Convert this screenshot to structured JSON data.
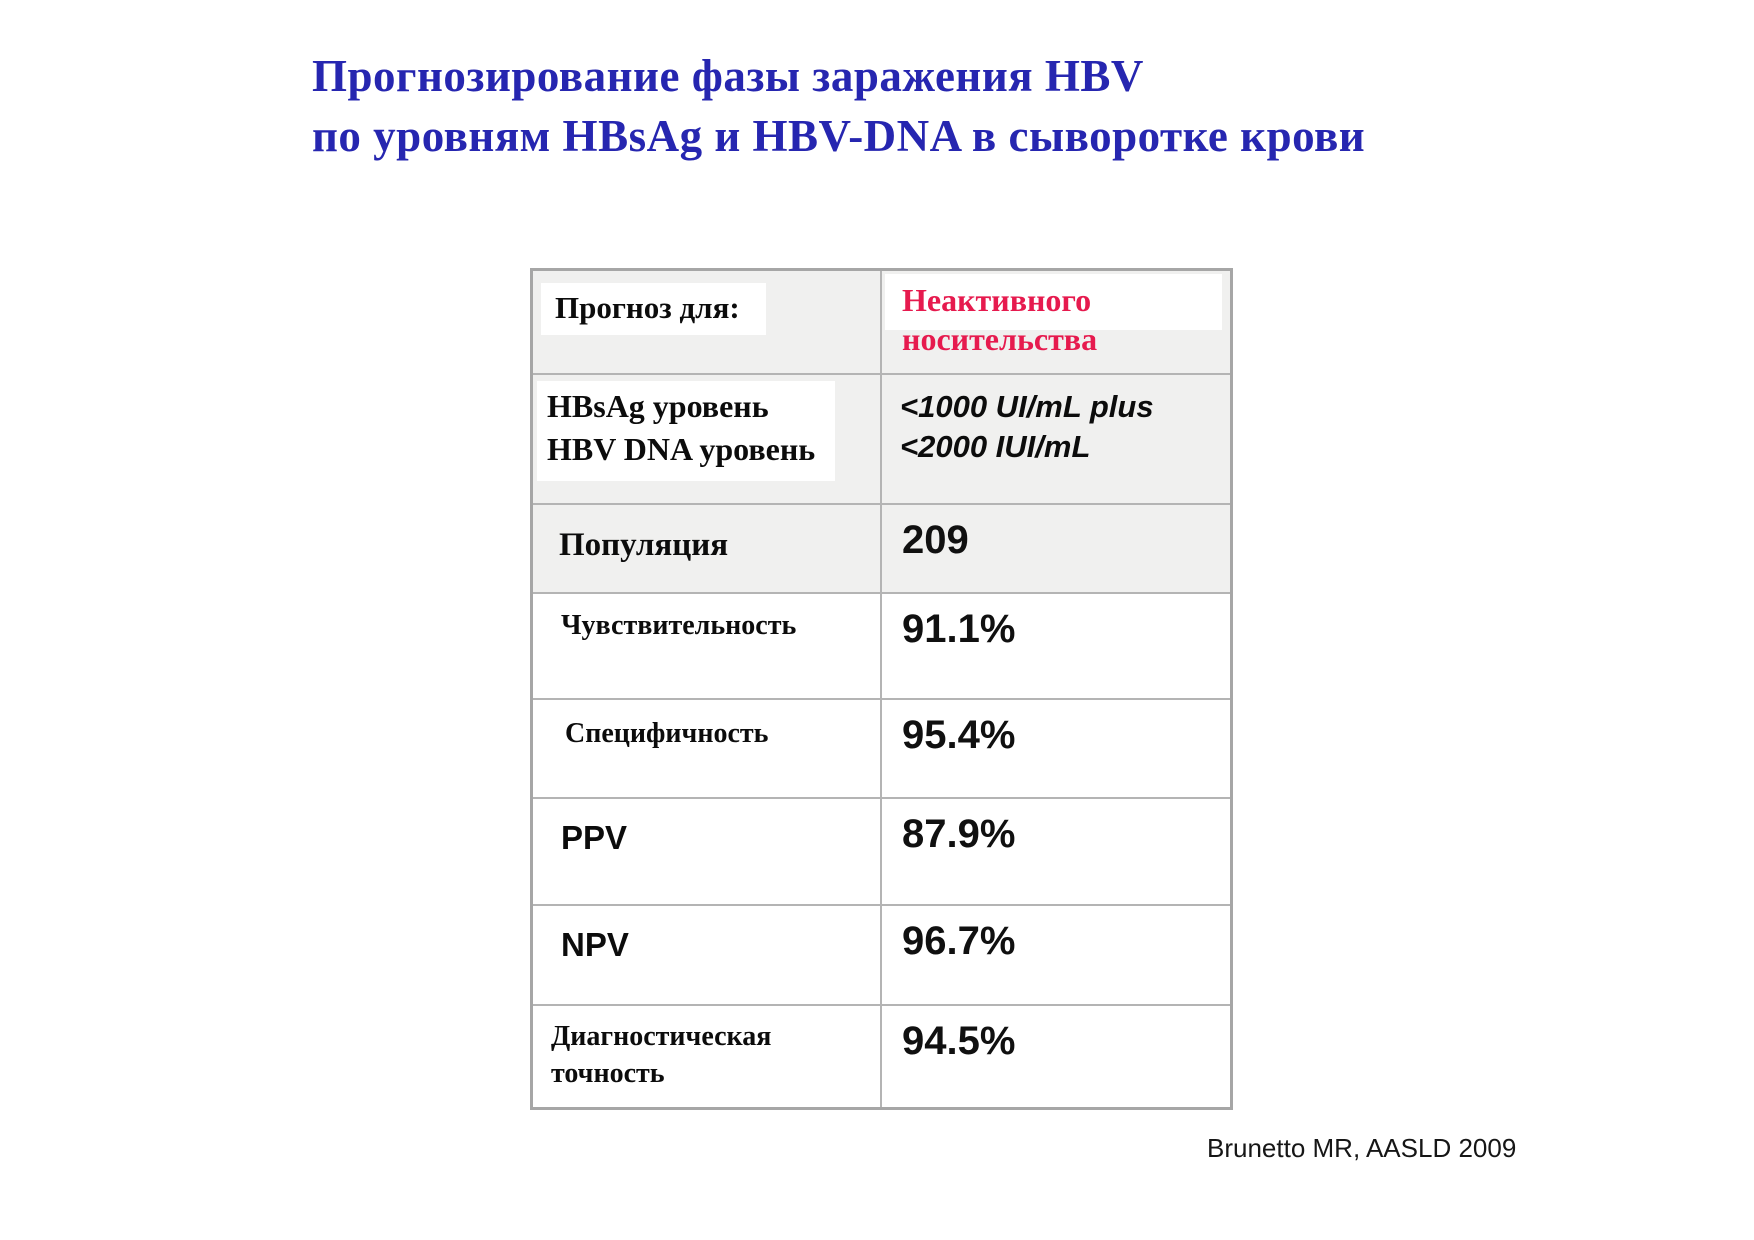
{
  "title": {
    "line1": "Прогнозирование фазы заражения HBV",
    "line2": "по уровням HBsAg и HBV-DNA в сыворотке крови"
  },
  "table": {
    "header": {
      "left": "Прогноз для:",
      "right": [
        "Неактивного",
        "носительства"
      ]
    },
    "rows": [
      {
        "label": [
          "HBsAg уровень",
          "HBV DNA уровень"
        ],
        "value": [
          "<1000 UI/mL plus",
          "<2000 IUI/mL"
        ]
      },
      {
        "label": "Популяция",
        "value": "209"
      },
      {
        "label": "Чувствительность",
        "value": "91.1%"
      },
      {
        "label": "Специфичность",
        "value": "95.4%"
      },
      {
        "label": "PPV",
        "value": "87.9%"
      },
      {
        "label": "NPV",
        "value": "96.7%"
      },
      {
        "label": [
          "Диагностическая",
          "точность"
        ],
        "value": "94.5%"
      }
    ]
  },
  "footer": {
    "citation": "Brunetto MR, AASLD 2009"
  },
  "colors": {
    "title_blue": "#2626b0",
    "header_red": "#e61a4e",
    "cell_gray": "#f0f0ef",
    "border_gray": "#a6a6a6"
  }
}
